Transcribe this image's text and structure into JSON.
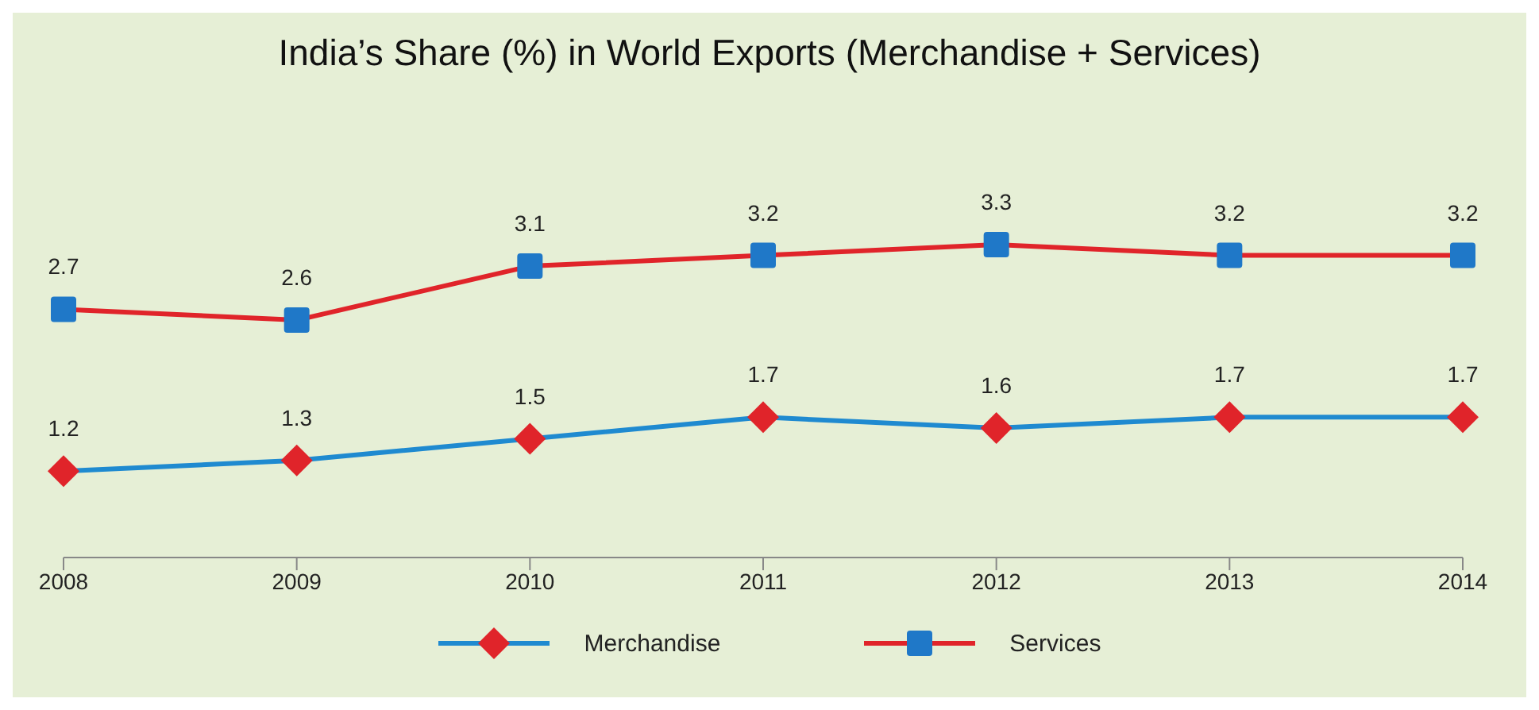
{
  "chart_data": {
    "type": "line",
    "title": "India’s Share (%) in World Exports (Merchandise + Services)",
    "categories": [
      "2008",
      "2009",
      "2010",
      "2011",
      "2012",
      "2013",
      "2014"
    ],
    "series": [
      {
        "name": "Merchandise",
        "color": "#1f8ad0",
        "marker": "diamond",
        "colors": [
          "#e0242a",
          "#e0242a",
          "#e0242a",
          "#e0242a",
          "#e0242a",
          "#e0242a",
          "#e0242a"
        ],
        "values": [
          1.2,
          1.3,
          1.5,
          1.7,
          1.6,
          1.7,
          1.7
        ]
      },
      {
        "name": "Services",
        "color": "#e0242a",
        "marker": "square",
        "colors": [
          "#1f78c8",
          "#1f78c8",
          "#1f78c8",
          "#1f78c8",
          "#1f78c8",
          "#1f78c8",
          "#1f78c8"
        ],
        "values": [
          2.7,
          2.6,
          3.1,
          3.2,
          3.3,
          3.2,
          3.2
        ]
      }
    ],
    "data_labels": true,
    "legend": "bottom",
    "grid": false
  }
}
